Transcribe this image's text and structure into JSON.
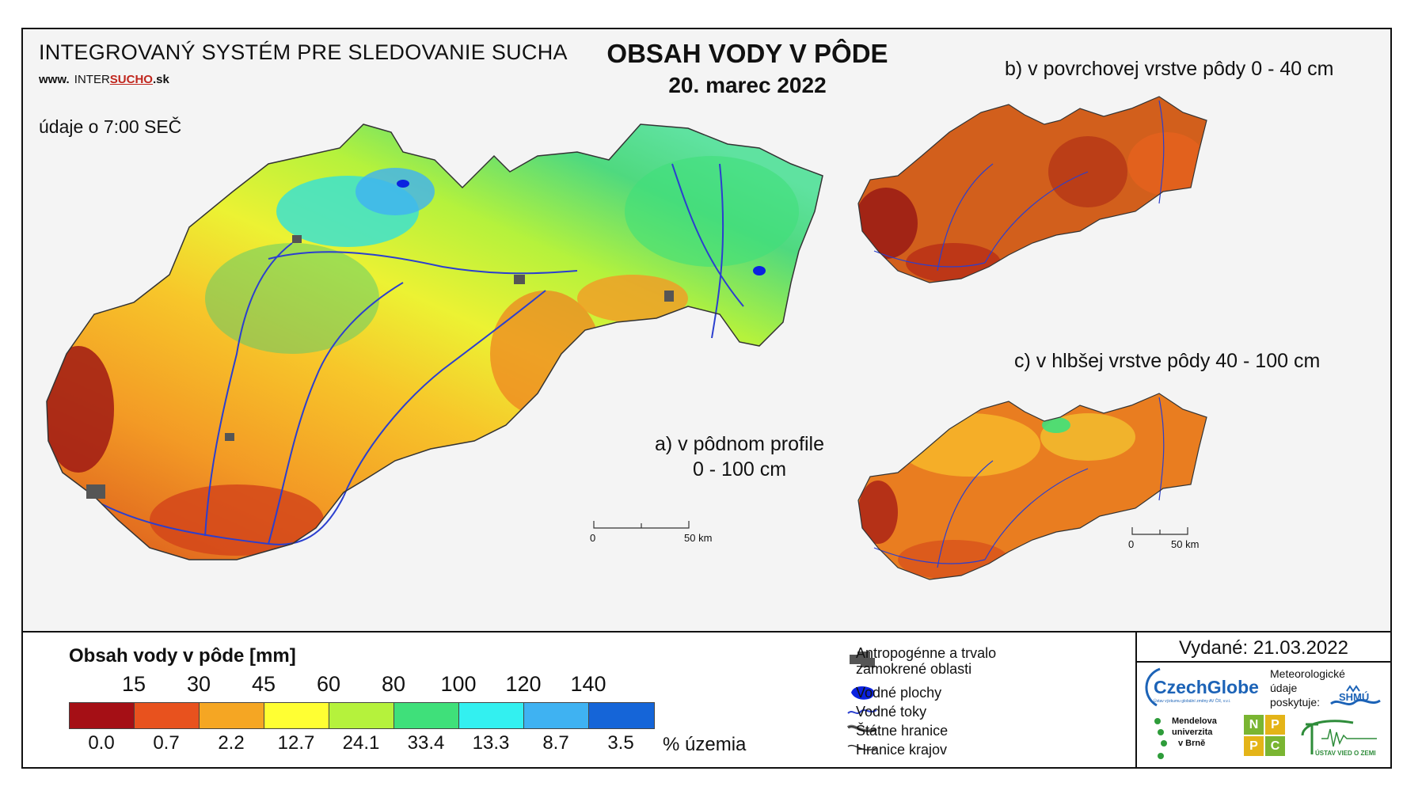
{
  "header": {
    "system_title": "INTEGROVANÝ SYSTÉM PRE SLEDOVANIE SUCHA",
    "url_prefix": "www.",
    "url_main": "INTER",
    "url_highlight": "SUCHO",
    "url_suffix": ".sk",
    "time_note": "údaje o 7:00 SEČ",
    "title": "OBSAH VODY V PÔDE",
    "date": "20. marec 2022"
  },
  "maps": {
    "a_label_line1": "a) v pôdnom profile",
    "a_label_line2": "0 - 100 cm",
    "b_label": "b) v povrchovej vrstve pôdy 0 - 40 cm",
    "c_label": "c) v hlbšej vrstve pôdy 40 - 100 cm",
    "scale_zero": "0",
    "scale_distance": "50 km"
  },
  "legend": {
    "title": "Obsah vody v pôde  [mm]",
    "thresholds": [
      "15",
      "30",
      "45",
      "60",
      "80",
      "100",
      "120",
      "140"
    ],
    "colors": [
      "#a50f15",
      "#e8521e",
      "#f5a623",
      "#ffff33",
      "#b5f23c",
      "#3fe07a",
      "#33f0f0",
      "#3fb2f2",
      "#1565d8"
    ],
    "percent_values": [
      "0.0",
      "0.7",
      "2.2",
      "12.7",
      "24.1",
      "33.4",
      "13.3",
      "8.7",
      "3.5"
    ],
    "percent_unit": "% územia"
  },
  "symbols": [
    {
      "icon": "anthropogenic-area-icon",
      "label_line1": "Antropogénne a trvalo",
      "label_line2": "zamokrené oblasti"
    },
    {
      "icon": "water-body-icon",
      "label_line1": "Vodné plochy",
      "label_line2": ""
    },
    {
      "icon": "river-line-icon",
      "label_line1": "Vodné toky",
      "label_line2": ""
    },
    {
      "icon": "state-border-icon",
      "label_line1": "Štátne hranice",
      "label_line2": ""
    },
    {
      "icon": "region-border-icon",
      "label_line1": "Hranice krajov",
      "label_line2": ""
    }
  ],
  "issued": "Vydané: 21.03.2022",
  "logos": {
    "czechglobe": "CzechGlobe",
    "czechglobe_sub": "Ústav výzkumu globální změny AV ČR, v.v.i.",
    "meteo_line1": "Meteorologické",
    "meteo_line2": "údaje",
    "meteo_line3": "poskytuje:",
    "shmu": "SHMÚ",
    "mendel_line1": "Mendelova",
    "mendel_line2": "univerzita",
    "mendel_line3": "v Brně",
    "nppc": [
      "N",
      "P",
      "P",
      "C"
    ],
    "ustav": "ÚSTAV VIED O ZEMI"
  },
  "colors": {
    "river": "#2b3fcf",
    "water_body": "#0a22e0",
    "anthropogenic": "#555555",
    "border": "#333333"
  }
}
